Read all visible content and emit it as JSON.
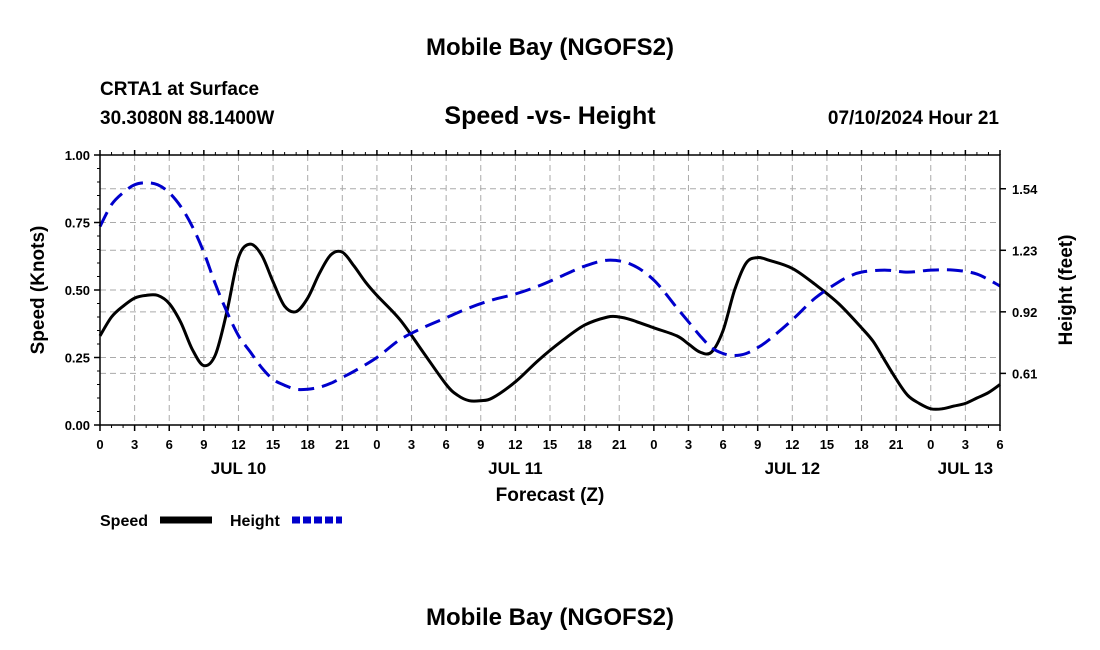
{
  "header": {
    "title": "Mobile Bay (NGOFS2)",
    "station": "CRTA1 at Surface",
    "coords": "30.3080N  88.1400W",
    "subtitle": "Speed -vs- Height",
    "datetime": "07/10/2024 Hour 21"
  },
  "footer": {
    "title": "Mobile Bay (NGOFS2)"
  },
  "colors": {
    "speed": "#000000",
    "height": "#0000cc",
    "grid": "#aaaaaa"
  },
  "chart_data": {
    "type": "line",
    "title": "Speed -vs- Height",
    "xlabel": "Forecast (Z)",
    "ylabel": "Speed (Knots)",
    "y2label": "Height (feet)",
    "x_range_hours": [
      0,
      78
    ],
    "x_ticks": [
      {
        "h": 0,
        "label": "0"
      },
      {
        "h": 3,
        "label": "3"
      },
      {
        "h": 6,
        "label": "6"
      },
      {
        "h": 9,
        "label": "9"
      },
      {
        "h": 12,
        "label": "12"
      },
      {
        "h": 15,
        "label": "15"
      },
      {
        "h": 18,
        "label": "18"
      },
      {
        "h": 21,
        "label": "21"
      },
      {
        "h": 24,
        "label": "0"
      },
      {
        "h": 27,
        "label": "3"
      },
      {
        "h": 30,
        "label": "6"
      },
      {
        "h": 33,
        "label": "9"
      },
      {
        "h": 36,
        "label": "12"
      },
      {
        "h": 39,
        "label": "15"
      },
      {
        "h": 42,
        "label": "18"
      },
      {
        "h": 45,
        "label": "21"
      },
      {
        "h": 48,
        "label": "0"
      },
      {
        "h": 51,
        "label": "3"
      },
      {
        "h": 54,
        "label": "6"
      },
      {
        "h": 57,
        "label": "9"
      },
      {
        "h": 60,
        "label": "12"
      },
      {
        "h": 63,
        "label": "15"
      },
      {
        "h": 66,
        "label": "18"
      },
      {
        "h": 69,
        "label": "21"
      },
      {
        "h": 72,
        "label": "0"
      },
      {
        "h": 75,
        "label": "3"
      },
      {
        "h": 78,
        "label": "6"
      }
    ],
    "date_labels": [
      {
        "h": 12,
        "label": "JUL 10"
      },
      {
        "h": 36,
        "label": "JUL 11"
      },
      {
        "h": 60,
        "label": "JUL 12"
      },
      {
        "h": 75,
        "label": "JUL 13"
      }
    ],
    "ylim": [
      0,
      1.0
    ],
    "y_ticks": [
      {
        "v": 0.0,
        "label": "0.00"
      },
      {
        "v": 0.25,
        "label": "0.25"
      },
      {
        "v": 0.5,
        "label": "0.50"
      },
      {
        "v": 0.75,
        "label": "0.75"
      },
      {
        "v": 1.0,
        "label": "1.00"
      }
    ],
    "y2lim": [
      0.35,
      1.71
    ],
    "y2_ticks": [
      {
        "v": 0.61,
        "label": "0.61"
      },
      {
        "v": 0.92,
        "label": "0.92"
      },
      {
        "v": 1.23,
        "label": "1.23"
      },
      {
        "v": 1.54,
        "label": "1.54"
      }
    ],
    "grid": true,
    "legend": {
      "position": "bottom-left",
      "speed_label": "Speed",
      "height_label": "Height"
    },
    "series": [
      {
        "name": "Speed",
        "axis": "left",
        "style": "solid",
        "x": [
          0,
          1,
          2,
          3,
          4,
          5,
          6,
          7,
          8,
          9,
          10,
          11,
          12,
          13,
          14,
          15,
          16,
          17,
          18,
          19,
          20,
          21,
          22,
          23,
          24,
          26,
          28,
          30,
          31,
          32,
          33,
          34,
          36,
          38,
          40,
          42,
          44,
          45,
          46,
          48,
          50,
          51,
          52,
          53,
          54,
          55,
          56,
          57,
          58,
          60,
          62,
          64,
          66,
          67,
          68,
          69,
          70,
          71,
          72,
          73,
          74,
          75,
          76,
          77,
          78
        ],
        "y": [
          0.33,
          0.4,
          0.44,
          0.47,
          0.48,
          0.48,
          0.45,
          0.38,
          0.28,
          0.22,
          0.26,
          0.42,
          0.62,
          0.67,
          0.63,
          0.53,
          0.44,
          0.42,
          0.47,
          0.56,
          0.63,
          0.64,
          0.59,
          0.53,
          0.48,
          0.39,
          0.27,
          0.15,
          0.11,
          0.09,
          0.09,
          0.1,
          0.16,
          0.24,
          0.31,
          0.37,
          0.4,
          0.4,
          0.39,
          0.36,
          0.33,
          0.3,
          0.27,
          0.27,
          0.35,
          0.5,
          0.6,
          0.62,
          0.61,
          0.58,
          0.52,
          0.45,
          0.36,
          0.31,
          0.24,
          0.17,
          0.11,
          0.08,
          0.06,
          0.06,
          0.07,
          0.08,
          0.1,
          0.12,
          0.15
        ]
      },
      {
        "name": "Height",
        "axis": "right",
        "style": "dashed",
        "x": [
          0,
          1,
          2,
          3,
          4,
          5,
          6,
          7,
          8,
          9,
          10,
          11,
          12,
          13,
          14,
          15,
          16,
          17,
          18,
          19,
          20,
          21,
          22,
          24,
          26,
          28,
          30,
          32,
          34,
          36,
          38,
          40,
          42,
          44,
          46,
          48,
          50,
          51,
          52,
          53,
          54,
          55,
          56,
          57,
          58,
          60,
          62,
          64,
          65,
          66,
          68,
          70,
          72,
          74,
          76,
          78
        ],
        "y": [
          1.35,
          1.46,
          1.52,
          1.56,
          1.57,
          1.56,
          1.52,
          1.45,
          1.35,
          1.22,
          1.06,
          0.92,
          0.8,
          0.72,
          0.64,
          0.58,
          0.55,
          0.53,
          0.53,
          0.54,
          0.56,
          0.59,
          0.62,
          0.69,
          0.78,
          0.84,
          0.89,
          0.94,
          0.98,
          1.01,
          1.05,
          1.1,
          1.15,
          1.18,
          1.16,
          1.08,
          0.94,
          0.87,
          0.8,
          0.74,
          0.71,
          0.7,
          0.71,
          0.74,
          0.78,
          0.88,
          0.99,
          1.07,
          1.1,
          1.12,
          1.13,
          1.12,
          1.13,
          1.13,
          1.11,
          1.05
        ]
      }
    ]
  }
}
